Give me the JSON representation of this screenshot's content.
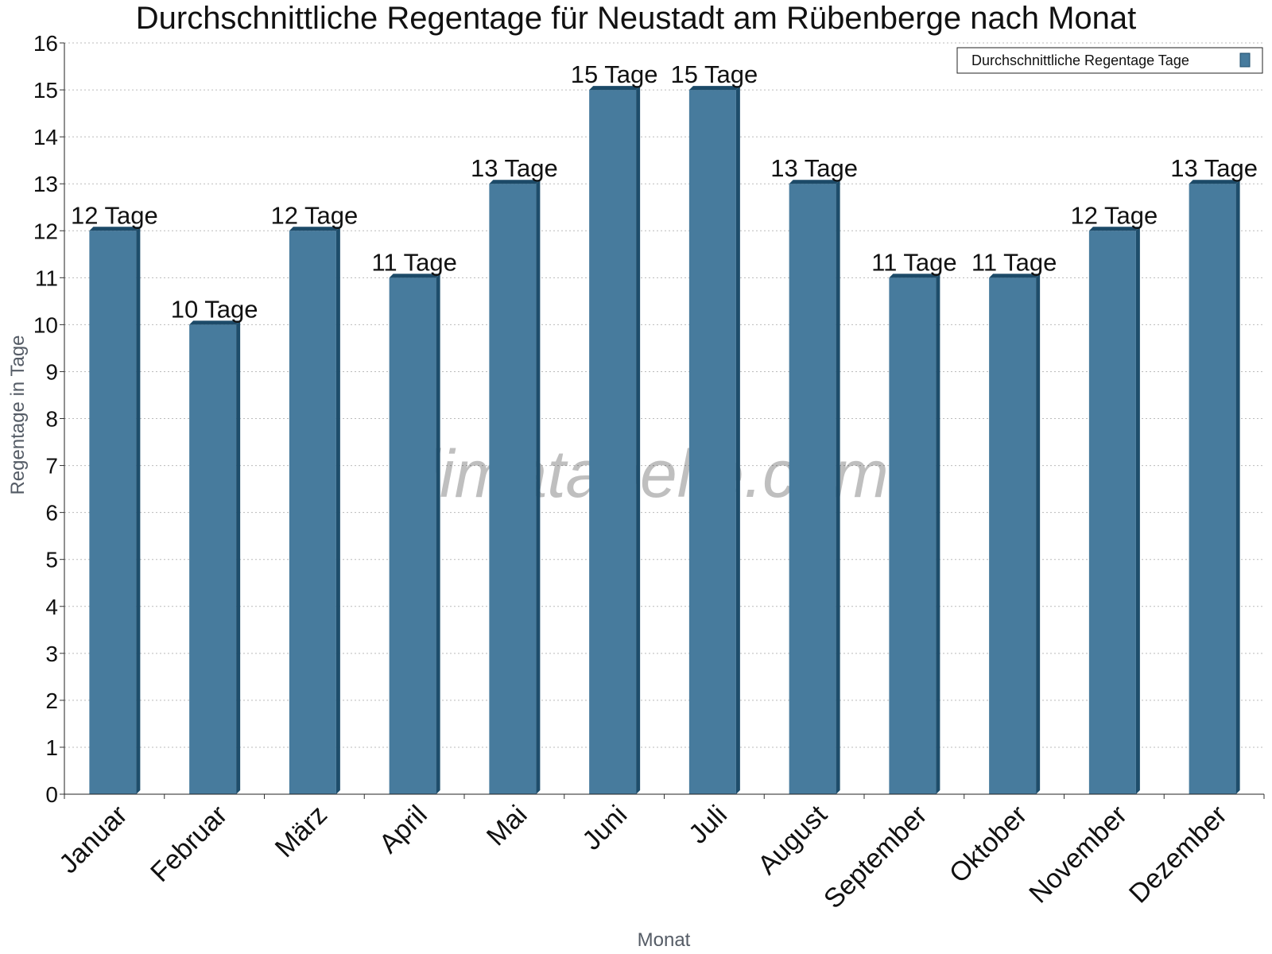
{
  "chart_data": {
    "type": "bar",
    "title": "Durchschnittliche Regentage für Neustadt am Rübenberge nach Monat",
    "xlabel": "Monat",
    "ylabel": "Regentage in Tage",
    "ylim": [
      0,
      16
    ],
    "yticks": [
      0,
      1,
      2,
      3,
      4,
      5,
      6,
      7,
      8,
      9,
      10,
      11,
      12,
      13,
      14,
      15,
      16
    ],
    "grid": true,
    "legend": "top-right",
    "categories": [
      "Januar",
      "Februar",
      "März",
      "April",
      "Mai",
      "Juni",
      "Juli",
      "August",
      "September",
      "Oktober",
      "November",
      "Dezember"
    ],
    "series": [
      {
        "name": "Durchschnittliche Regentage Tage",
        "values": [
          12,
          10,
          12,
          11,
          13,
          15,
          15,
          13,
          11,
          11,
          12,
          13
        ],
        "labels": [
          "12 Tage",
          "10 Tage",
          "12 Tage",
          "11 Tage",
          "13 Tage",
          "15 Tage",
          "15 Tage",
          "13 Tage",
          "11 Tage",
          "11 Tage",
          "12 Tage",
          "13 Tage"
        ],
        "color": "#477b9d",
        "side_color": "#1e4d6b",
        "top_color": "#1c4a68"
      }
    ],
    "watermark": "klimatabelle.com"
  }
}
